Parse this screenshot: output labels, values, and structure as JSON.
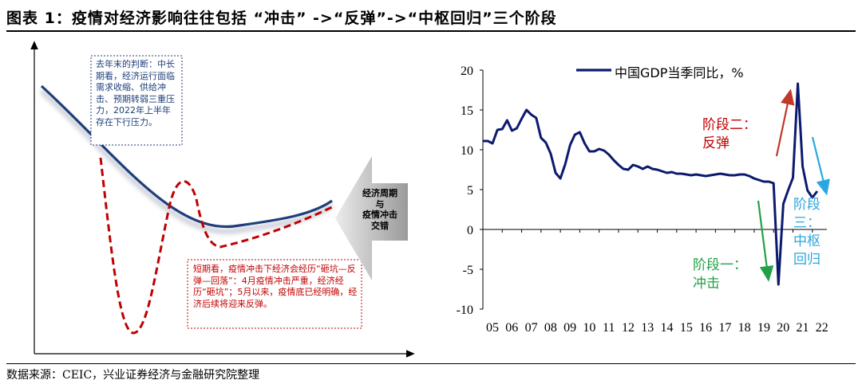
{
  "title": "图表 1：疫情对经济影响往往包括 “冲击” ->“反弹”->“中枢回归”三个阶段",
  "source": "数据来源：CEIC，兴业证券经济与金融研究院整理",
  "colors": {
    "navy": "#0c1a6e",
    "red": "#c00000",
    "green": "#22a047",
    "lightblue": "#2aa7e0",
    "darkred": "#c0392b",
    "gray": "#a6a6a6"
  },
  "left_panel": {
    "note_top": "去年末的判断：中长期看，经济运行面临需求收缩、供给冲击、预期转弱三重压力，2022年上半年存在下行压力。",
    "note_bottom": "短期看，疫情冲击下经济会经历“砸坑—反弹—回落”：4月疫情冲击严重，经济经历“砸坑”；5月以来，疫情底已经明确，经济后续将迎来反弹。",
    "arrow_label": [
      "经济周期",
      "与",
      "疫情冲击",
      "交错"
    ]
  },
  "chart_data": {
    "type": "line",
    "title": "",
    "xlabel": "",
    "ylabel": "",
    "ylim": [
      -10,
      20
    ],
    "yticks": [
      -10,
      -5,
      0,
      5,
      10,
      15,
      20
    ],
    "xticks": [
      "05",
      "06",
      "07",
      "08",
      "09",
      "10",
      "11",
      "12",
      "13",
      "14",
      "15",
      "16",
      "17",
      "18",
      "19",
      "20",
      "21",
      "22"
    ],
    "x_start": 2005.0,
    "x_end": 2022.75,
    "series": [
      {
        "name": "中国GDP当季同比，%",
        "values": [
          11.1,
          11.1,
          10.8,
          12.5,
          12.6,
          13.7,
          12.4,
          12.7,
          13.9,
          15.0,
          14.4,
          14.0,
          11.5,
          10.9,
          9.5,
          7.1,
          6.4,
          8.2,
          10.6,
          11.9,
          12.2,
          10.8,
          9.8,
          9.8,
          10.1,
          9.9,
          9.4,
          8.7,
          8.1,
          7.6,
          7.5,
          8.1,
          7.9,
          7.6,
          7.9,
          7.6,
          7.5,
          7.3,
          7.1,
          7.2,
          7.0,
          7.0,
          6.9,
          6.8,
          6.9,
          6.8,
          6.7,
          6.8,
          6.9,
          7.0,
          6.9,
          6.8,
          6.8,
          6.9,
          6.9,
          6.7,
          6.4,
          6.2,
          6.0,
          6.0,
          5.8,
          -6.9,
          3.2,
          4.9,
          6.5,
          18.3,
          7.9,
          4.9,
          4.0,
          4.8
        ]
      }
    ],
    "annotations": [
      "阶段二：\n反弹",
      "阶段一：\n冲击",
      "阶段\n三：\n中枢\n回归"
    ]
  }
}
